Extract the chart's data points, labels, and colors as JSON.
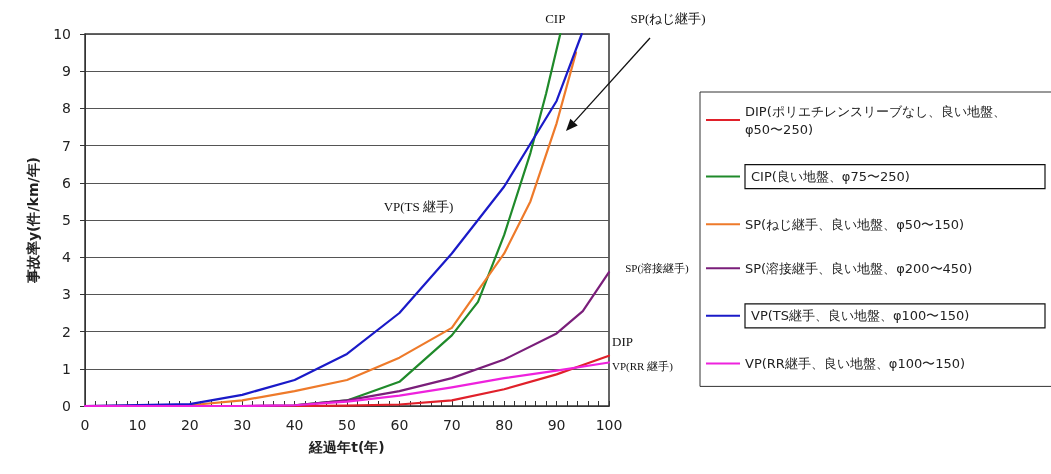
{
  "chart_data": {
    "type": "line",
    "xlabel": "経過年t(年)",
    "ylabel": "事故率y(件/km/年)",
    "xlim": [
      0,
      100
    ],
    "xticks": [
      0,
      10,
      20,
      30,
      40,
      50,
      60,
      70,
      80,
      90,
      100
    ],
    "ylim": [
      0,
      10
    ],
    "yticks": [
      0,
      1,
      2,
      3,
      4,
      5,
      6,
      7,
      8,
      9,
      10
    ],
    "grid": "y",
    "legend": "right",
    "marker": "none",
    "line_style": "solid",
    "series": [
      {
        "name": "DIP(ポリエチレンスリーブなし、良い地盤、φ50〜250)",
        "color": "#e0202a",
        "x": [
          0,
          40,
          50,
          60,
          70,
          80,
          90,
          95,
          100
        ],
        "values": [
          0,
          0,
          0.01,
          0.04,
          0.15,
          0.45,
          0.85,
          1.1,
          1.35
        ]
      },
      {
        "name": "CIP(良い地盤、φ75〜250)",
        "color": "#1f8a2a",
        "x": [
          40,
          50,
          60,
          70,
          75,
          80,
          85,
          88,
          90.7
        ],
        "values": [
          0.02,
          0.15,
          0.65,
          1.9,
          2.8,
          4.6,
          6.8,
          8.4,
          10
        ]
      },
      {
        "name": "SP(ねじ継手、良い地盤、φ50〜150)",
        "color": "#ee7a2a",
        "x": [
          0,
          20,
          30,
          40,
          50,
          60,
          70,
          80,
          85,
          90,
          93.7
        ],
        "values": [
          0,
          0.02,
          0.15,
          0.4,
          0.7,
          1.3,
          2.1,
          4.1,
          5.5,
          7.6,
          9.5
        ]
      },
      {
        "name": "SP(溶接継手、良い地盤、φ200〜450)",
        "color": "#7a1e7a",
        "x": [
          0,
          30,
          40,
          50,
          60,
          70,
          80,
          90,
          95,
          100
        ],
        "values": [
          0,
          0,
          0.02,
          0.15,
          0.4,
          0.75,
          1.25,
          1.95,
          2.55,
          3.6
        ]
      },
      {
        "name": "VP(TS継手、良い地盤、φ100〜150)",
        "color": "#1a1ac8",
        "x": [
          0,
          20,
          30,
          40,
          50,
          60,
          70,
          80,
          90,
          94.8
        ],
        "values": [
          0,
          0.05,
          0.3,
          0.7,
          1.4,
          2.5,
          4.1,
          5.9,
          8.2,
          10
        ]
      },
      {
        "name": "VP(RR継手、良い地盤、φ100〜150)",
        "color": "#ee22dd",
        "x": [
          0,
          30,
          40,
          50,
          60,
          70,
          80,
          90,
          100
        ],
        "values": [
          0,
          0,
          0.02,
          0.12,
          0.28,
          0.5,
          0.75,
          0.95,
          1.17
        ]
      }
    ],
    "annotations": [
      {
        "text": "CIP",
        "x": 90.7,
        "y": 10
      },
      "SP(ねじ継手)",
      {
        "text": "VP(TS 継手)",
        "x": 77,
        "y": 5.35
      },
      {
        "text": "SP(溶接継手)",
        "x": 100,
        "y": 3.6
      },
      {
        "text": "DIP",
        "x": 100,
        "y": 1.35
      },
      {
        "text": "VP(RR 継手)",
        "x": 100,
        "y": 1.17
      }
    ]
  }
}
